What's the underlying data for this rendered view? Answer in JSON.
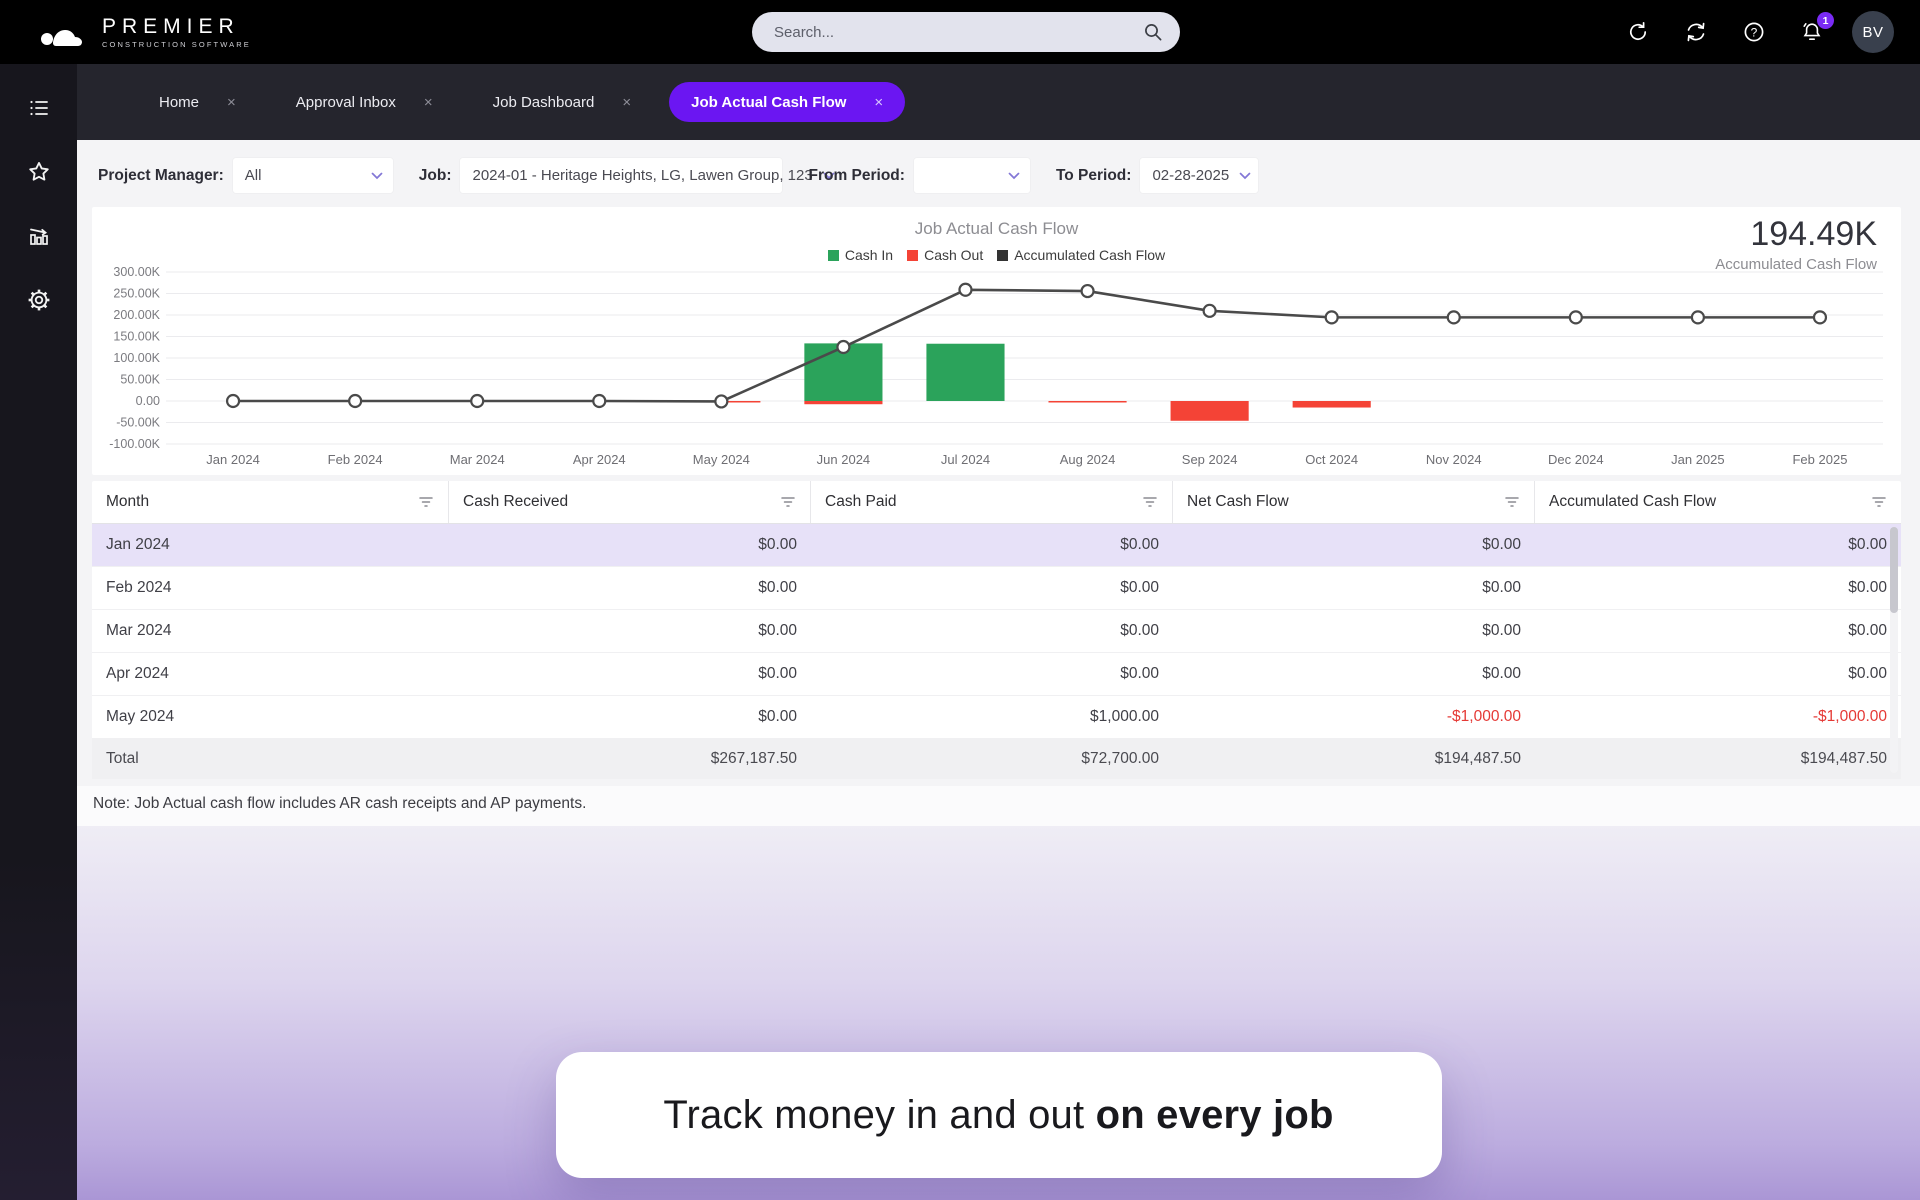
{
  "ui": {
    "close_glyph": "×",
    "help_glyph": "?"
  },
  "header": {
    "logo_title": "PREMIER",
    "logo_subtitle": "CONSTRUCTION SOFTWARE",
    "search_placeholder": "Search...",
    "notification_count": "1",
    "avatar_initials": "BV"
  },
  "tabs": [
    {
      "label": "Home"
    },
    {
      "label": "Approval Inbox"
    },
    {
      "label": "Job Dashboard"
    },
    {
      "label": "Job Actual Cash Flow"
    }
  ],
  "filters": [
    {
      "label": "Project Manager:",
      "value": "All"
    },
    {
      "label": "Job:",
      "value": "2024-01 - Heritage Heights, LG, Lawen Group, 123"
    },
    {
      "label": "From Period:",
      "value": ""
    },
    {
      "label": "To Period:",
      "value": "02-28-2025"
    }
  ],
  "chart": {
    "kpi_value": "194.49K",
    "kpi_label": "Accumulated Cash Flow"
  },
  "chart_data": {
    "type": "combo",
    "title": "Job Actual Cash Flow",
    "categories": [
      "Jan 2024",
      "Feb 2024",
      "Mar 2024",
      "Apr 2024",
      "May 2024",
      "Jun 2024",
      "Jul 2024",
      "Aug 2024",
      "Sep 2024",
      "Oct 2024",
      "Nov 2024",
      "Dec 2024",
      "Jan 2025",
      "Feb 2025"
    ],
    "series": [
      {
        "name": "Cash In",
        "type": "bar",
        "color": "#2ba35b",
        "values": [
          0,
          0,
          0,
          0,
          0,
          134000,
          133187.5,
          0,
          0,
          0,
          0,
          0,
          0,
          0
        ]
      },
      {
        "name": "Cash Out",
        "type": "bar",
        "color": "#f44336",
        "values": [
          0,
          0,
          0,
          0,
          -1000,
          -7500,
          0,
          -3000,
          -46000,
          -15200,
          0,
          0,
          0,
          0
        ]
      },
      {
        "name": "Accumulated Cash Flow",
        "type": "line",
        "color": "#4a4a4a",
        "values": [
          0,
          0,
          0,
          0,
          -1000,
          125500,
          258687.5,
          255687.5,
          209687.5,
          194487.5,
          194487.5,
          194487.5,
          194487.5,
          194487.5
        ]
      }
    ],
    "ylim": [
      -100000,
      300000
    ],
    "ytick_step": 50000,
    "ytick_labels": [
      "300.00K",
      "250.00K",
      "200.00K",
      "150.00K",
      "100.00K",
      "50.00K",
      "0.00",
      "-50.00K",
      "-100.00K"
    ],
    "grid": "horizontal",
    "legend_position": "top"
  },
  "table": {
    "columns": [
      "Month",
      "Cash Received",
      "Cash Paid",
      "Net Cash Flow",
      "Accumulated Cash Flow"
    ],
    "rows": [
      {
        "cells": [
          "Jan 2024",
          "$0.00",
          "$0.00",
          "$0.00",
          "$0.00"
        ]
      },
      {
        "cells": [
          "Feb 2024",
          "$0.00",
          "$0.00",
          "$0.00",
          "$0.00"
        ]
      },
      {
        "cells": [
          "Mar 2024",
          "$0.00",
          "$0.00",
          "$0.00",
          "$0.00"
        ]
      },
      {
        "cells": [
          "Apr 2024",
          "$0.00",
          "$0.00",
          "$0.00",
          "$0.00"
        ]
      },
      {
        "cells": [
          "May 2024",
          "$0.00",
          "$1,000.00",
          "-$1,000.00",
          "-$1,000.00"
        ]
      }
    ],
    "total": {
      "cells": [
        "Total",
        "$267,187.50",
        "$72,700.00",
        "$194,487.50",
        "$194,487.50"
      ]
    }
  },
  "note": "Note: Job Actual cash flow includes AR cash receipts and AP payments.",
  "caption": {
    "normal": "Track money in and out ",
    "bold": "on every job"
  }
}
